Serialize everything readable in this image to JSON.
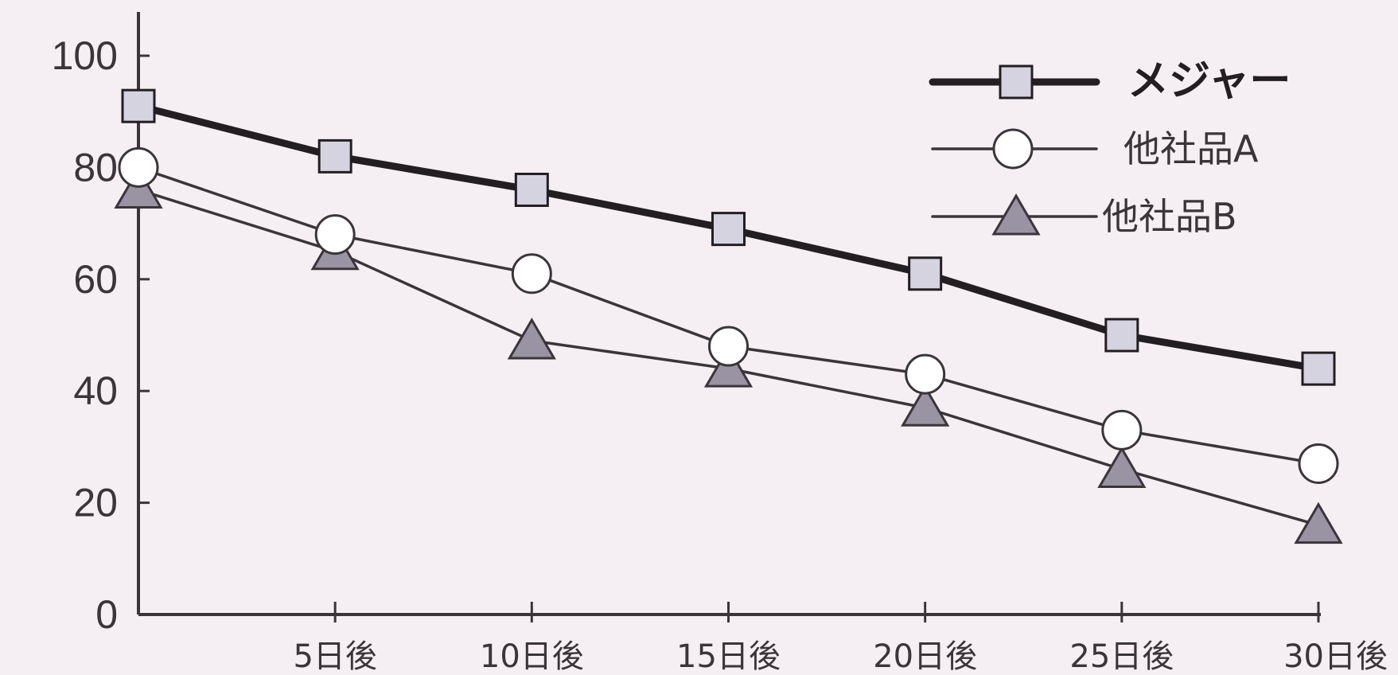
{
  "chart_data": {
    "type": "line",
    "title": "",
    "xlabel": "",
    "ylabel": "",
    "categories": [
      "",
      "5日後",
      "10日後",
      "15日後",
      "20日後",
      "25日後",
      "30日後"
    ],
    "x": [
      0,
      5,
      10,
      15,
      20,
      25,
      30
    ],
    "ylim": [
      0,
      100
    ],
    "yticks": [
      0,
      20,
      40,
      60,
      80,
      100
    ],
    "ytick_labels": [
      "0",
      "20",
      "40",
      "60",
      "80",
      "100"
    ],
    "grid": false,
    "legend_position": "top-right",
    "series": [
      {
        "name": "メジャー",
        "marker": "square",
        "line_style": "thick",
        "color": "#221e21",
        "marker_fill": "#d6d3e0",
        "values": [
          91,
          82,
          76,
          69,
          61,
          50,
          44
        ]
      },
      {
        "name": "他社品A",
        "marker": "circle",
        "line_style": "thin",
        "color": "#3a3539",
        "marker_fill": "#ffffff",
        "values": [
          80,
          68,
          61,
          48,
          43,
          33,
          27
        ]
      },
      {
        "name": "他社品B",
        "marker": "triangle",
        "line_style": "thin",
        "color": "#3a3539",
        "marker_fill": "#9a93a3",
        "values": [
          76,
          65,
          49,
          44,
          37,
          26,
          16
        ]
      }
    ]
  }
}
